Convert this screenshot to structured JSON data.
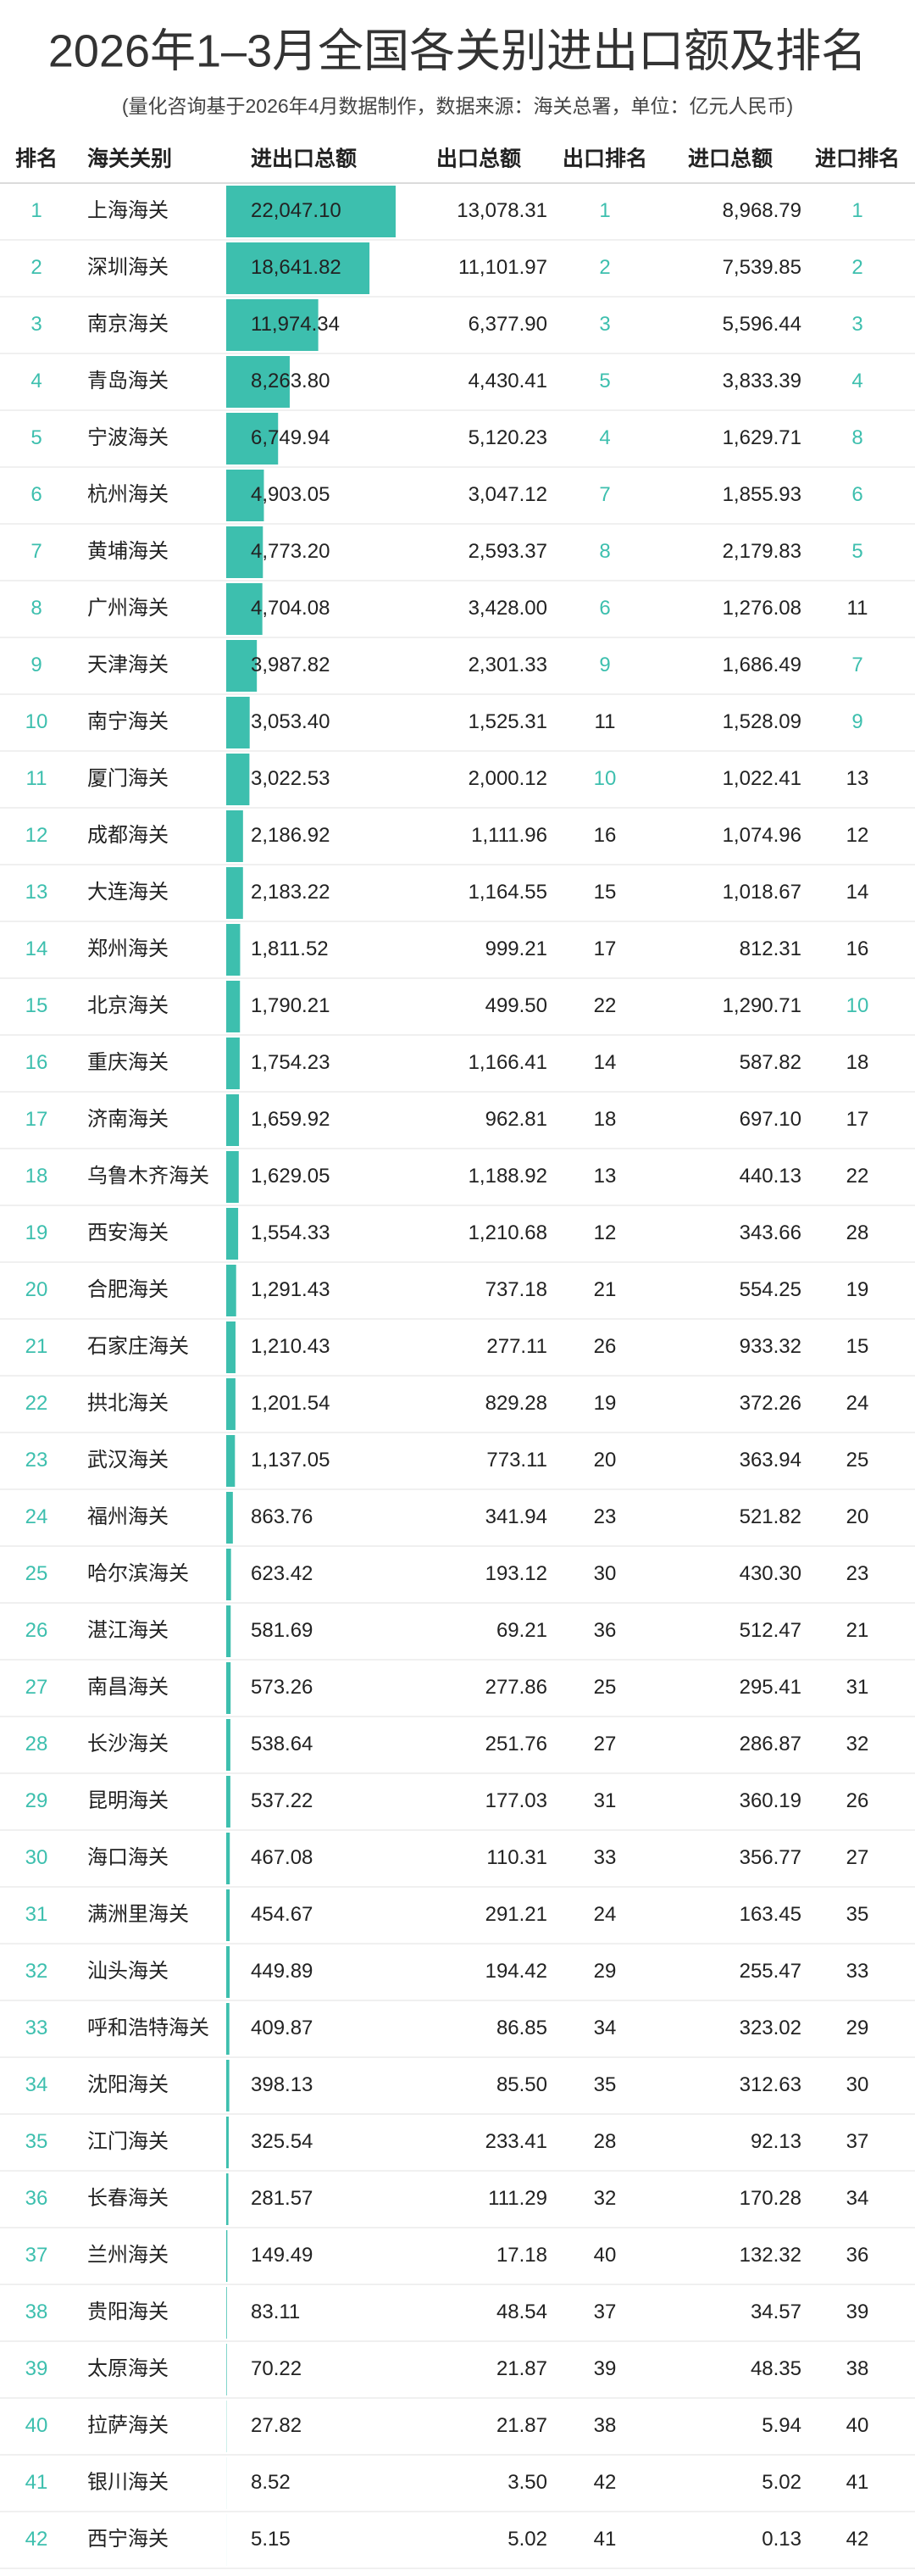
{
  "header": {
    "title": "2026年1–3月全国各关别进出口额及排名",
    "subtitle": "(量化咨询基于2026年4月数据制作，数据来源：海关总署，单位：亿元人民币)"
  },
  "table": {
    "columns": [
      "排名",
      "海关关别",
      "进出口总额",
      "出口总额",
      "出口排名",
      "进口总额",
      "进口排名"
    ],
    "rows": [
      [
        1,
        "上海海关",
        "22,047.10",
        "13,078.31",
        1,
        "8,968.79",
        1
      ],
      [
        2,
        "深圳海关",
        "18,641.82",
        "11,101.97",
        2,
        "7,539.85",
        2
      ],
      [
        3,
        "南京海关",
        "11,974.34",
        "6,377.90",
        3,
        "5,596.44",
        3
      ],
      [
        4,
        "青岛海关",
        "8,263.80",
        "4,430.41",
        5,
        "3,833.39",
        4
      ],
      [
        5,
        "宁波海关",
        "6,749.94",
        "5,120.23",
        4,
        "1,629.71",
        8
      ],
      [
        6,
        "杭州海关",
        "4,903.05",
        "3,047.12",
        7,
        "1,855.93",
        6
      ],
      [
        7,
        "黄埔海关",
        "4,773.20",
        "2,593.37",
        8,
        "2,179.83",
        5
      ],
      [
        8,
        "广州海关",
        "4,704.08",
        "3,428.00",
        6,
        "1,276.08",
        11
      ],
      [
        9,
        "天津海关",
        "3,987.82",
        "2,301.33",
        9,
        "1,686.49",
        7
      ],
      [
        10,
        "南宁海关",
        "3,053.40",
        "1,525.31",
        11,
        "1,528.09",
        9
      ],
      [
        11,
        "厦门海关",
        "3,022.53",
        "2,000.12",
        10,
        "1,022.41",
        13
      ],
      [
        12,
        "成都海关",
        "2,186.92",
        "1,111.96",
        16,
        "1,074.96",
        12
      ],
      [
        13,
        "大连海关",
        "2,183.22",
        "1,164.55",
        15,
        "1,018.67",
        14
      ],
      [
        14,
        "郑州海关",
        "1,811.52",
        "999.21",
        17,
        "812.31",
        16
      ],
      [
        15,
        "北京海关",
        "1,790.21",
        "499.50",
        22,
        "1,290.71",
        10
      ],
      [
        16,
        "重庆海关",
        "1,754.23",
        "1,166.41",
        14,
        "587.82",
        18
      ],
      [
        17,
        "济南海关",
        "1,659.92",
        "962.81",
        18,
        "697.10",
        17
      ],
      [
        18,
        "乌鲁木齐海关",
        "1,629.05",
        "1,188.92",
        13,
        "440.13",
        22
      ],
      [
        19,
        "西安海关",
        "1,554.33",
        "1,210.68",
        12,
        "343.66",
        28
      ],
      [
        20,
        "合肥海关",
        "1,291.43",
        "737.18",
        21,
        "554.25",
        19
      ],
      [
        21,
        "石家庄海关",
        "1,210.43",
        "277.11",
        26,
        "933.32",
        15
      ],
      [
        22,
        "拱北海关",
        "1,201.54",
        "829.28",
        19,
        "372.26",
        24
      ],
      [
        23,
        "武汉海关",
        "1,137.05",
        "773.11",
        20,
        "363.94",
        25
      ],
      [
        24,
        "福州海关",
        "863.76",
        "341.94",
        23,
        "521.82",
        20
      ],
      [
        25,
        "哈尔滨海关",
        "623.42",
        "193.12",
        30,
        "430.30",
        23
      ],
      [
        26,
        "湛江海关",
        "581.69",
        "69.21",
        36,
        "512.47",
        21
      ],
      [
        27,
        "南昌海关",
        "573.26",
        "277.86",
        25,
        "295.41",
        31
      ],
      [
        28,
        "长沙海关",
        "538.64",
        "251.76",
        27,
        "286.87",
        32
      ],
      [
        29,
        "昆明海关",
        "537.22",
        "177.03",
        31,
        "360.19",
        26
      ],
      [
        30,
        "海口海关",
        "467.08",
        "110.31",
        33,
        "356.77",
        27
      ],
      [
        31,
        "满洲里海关",
        "454.67",
        "291.21",
        24,
        "163.45",
        35
      ],
      [
        32,
        "汕头海关",
        "449.89",
        "194.42",
        29,
        "255.47",
        33
      ],
      [
        33,
        "呼和浩特海关",
        "409.87",
        "86.85",
        34,
        "323.02",
        29
      ],
      [
        34,
        "沈阳海关",
        "398.13",
        "85.50",
        35,
        "312.63",
        30
      ],
      [
        35,
        "江门海关",
        "325.54",
        "233.41",
        28,
        "92.13",
        37
      ],
      [
        36,
        "长春海关",
        "281.57",
        "111.29",
        32,
        "170.28",
        34
      ],
      [
        37,
        "兰州海关",
        "149.49",
        "17.18",
        40,
        "132.32",
        36
      ],
      [
        38,
        "贵阳海关",
        "83.11",
        "48.54",
        37,
        "34.57",
        39
      ],
      [
        39,
        "太原海关",
        "70.22",
        "21.87",
        39,
        "48.35",
        38
      ],
      [
        40,
        "拉萨海关",
        "27.82",
        "21.87",
        38,
        "5.94",
        40
      ],
      [
        41,
        "银川海关",
        "8.52",
        "3.50",
        42,
        "5.02",
        41
      ],
      [
        42,
        "西宁海关",
        "5.15",
        "5.02",
        41,
        "0.13",
        42
      ]
    ]
  }
}
